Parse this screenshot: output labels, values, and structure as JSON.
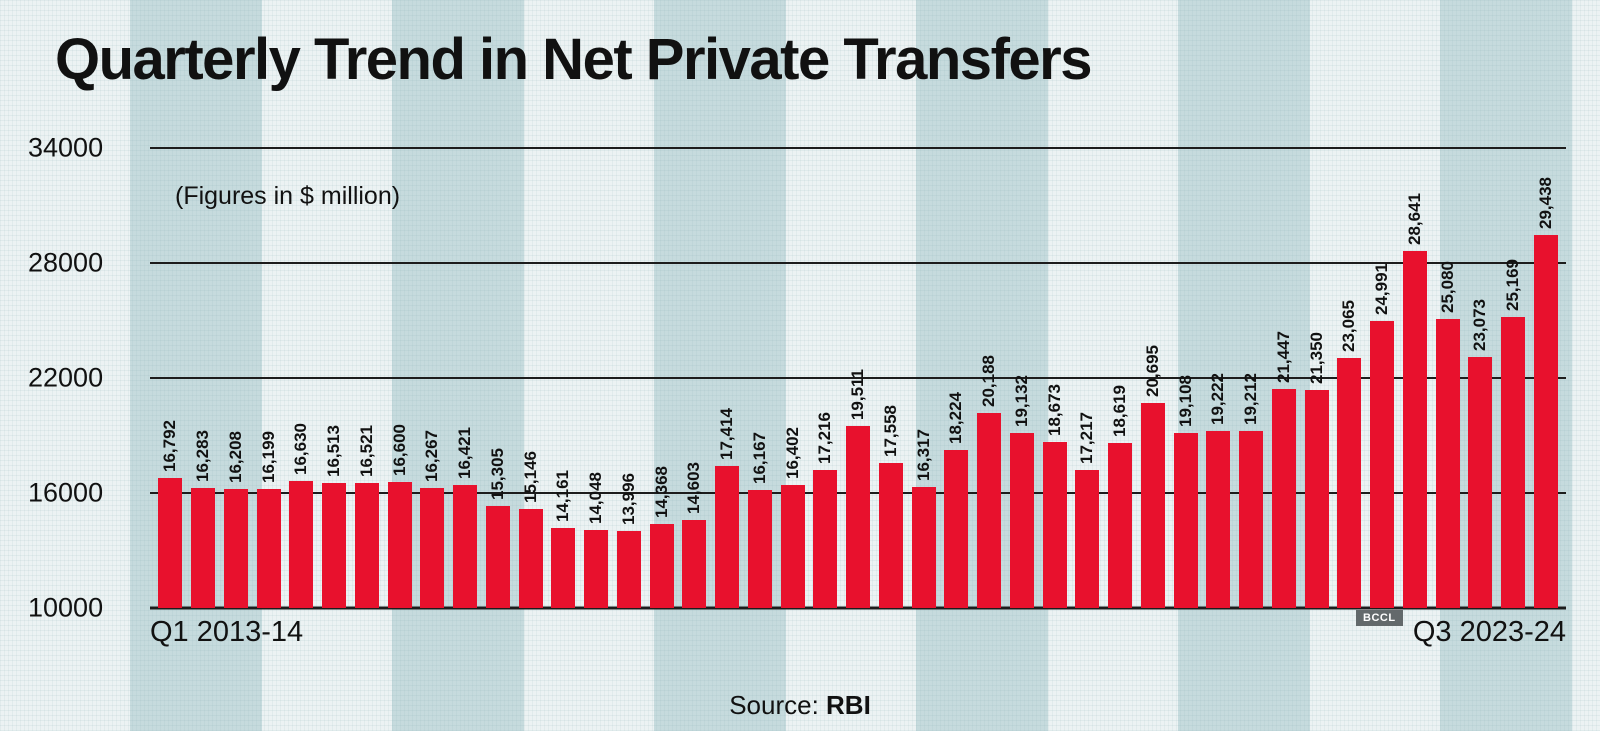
{
  "title": "Quarterly Trend in Net Private Transfers",
  "subtitle": "(Figures in $ million)",
  "source": {
    "label": "Source:",
    "value": "RBI"
  },
  "watermark": "BCCL",
  "x_axis": {
    "first": "Q1 2013-14",
    "last": "Q3 2023-24"
  },
  "colors": {
    "bar": "#e8112d",
    "grid": "#1c1c1c",
    "text": "#111111"
  },
  "chart_data": {
    "type": "bar",
    "title": "Quarterly Trend in Net Private Transfers",
    "units": "$ million",
    "ylim": [
      10000,
      34000
    ],
    "yticks": [
      34000,
      28000,
      22000,
      16000,
      10000
    ],
    "grid": "horizontal",
    "x_first_label": "Q1 2013-14",
    "x_last_label": "Q3 2023-24",
    "values": [
      16792,
      16283,
      16208,
      16199,
      16630,
      16513,
      16521,
      16600,
      16267,
      16421,
      15305,
      15146,
      14161,
      14048,
      13996,
      14368,
      14603,
      17414,
      16167,
      16402,
      17216,
      19511,
      17558,
      16317,
      18224,
      20188,
      19132,
      18673,
      17217,
      18619,
      20695,
      19108,
      19222,
      19212,
      21447,
      21350,
      23065,
      24991,
      28641,
      25080,
      23073,
      25169,
      29438
    ]
  }
}
